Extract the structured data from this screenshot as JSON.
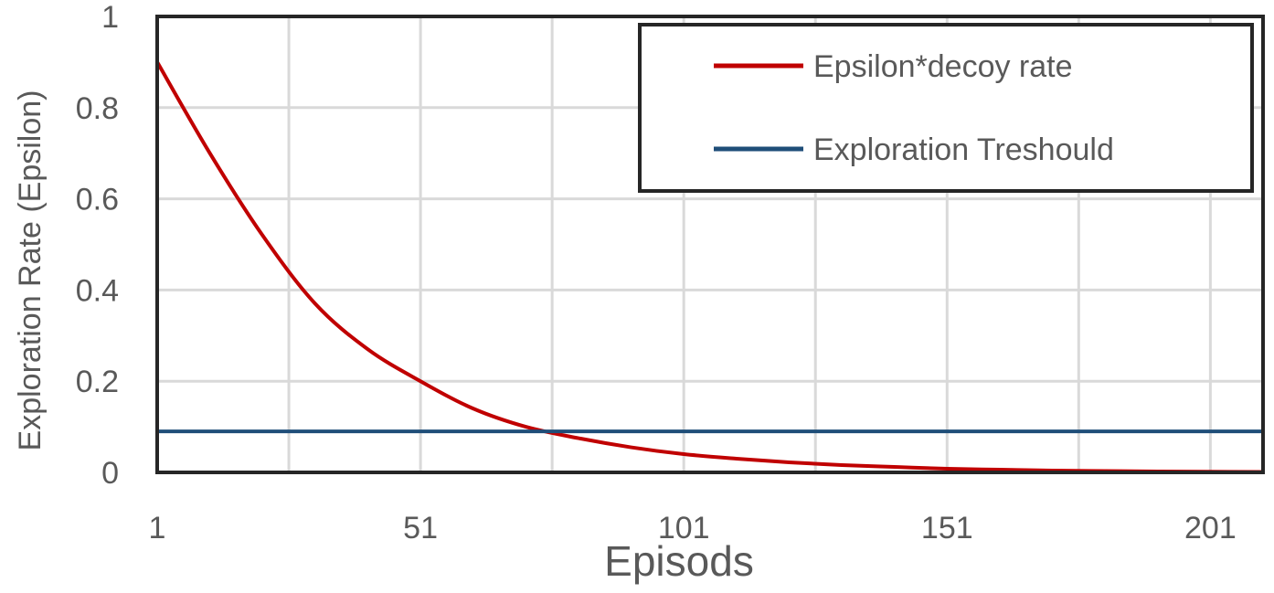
{
  "chart_data": {
    "type": "line",
    "title": "",
    "xlabel": "Episods",
    "ylabel": "Exploration Rate (Epsilon)",
    "xlim": [
      1,
      211
    ],
    "ylim": [
      0,
      1
    ],
    "x_ticks": [
      "1",
      "51",
      "101",
      "151",
      "201"
    ],
    "y_ticks": [
      "0",
      "0.2",
      "0.4",
      "0.6",
      "0.8",
      "1"
    ],
    "grid": true,
    "legend_position": "top-right",
    "series": [
      {
        "name": "Epsilon*decoy rate",
        "color": "#C00000",
        "x": [
          1,
          11,
          21,
          31,
          41,
          51,
          61,
          71,
          81,
          91,
          101,
          111,
          121,
          131,
          141,
          151,
          161,
          171,
          181,
          191,
          201,
          211
        ],
        "y": [
          0.9,
          0.7,
          0.52,
          0.37,
          0.27,
          0.2,
          0.14,
          0.1,
          0.075,
          0.055,
          0.04,
          0.03,
          0.022,
          0.016,
          0.012,
          0.008,
          0.006,
          0.004,
          0.003,
          0.002,
          0.0015,
          0.001
        ]
      },
      {
        "name": "Exploration Treshould",
        "color": "#1F4E79",
        "x": [
          1,
          211
        ],
        "y": [
          0.09,
          0.09
        ]
      }
    ]
  }
}
